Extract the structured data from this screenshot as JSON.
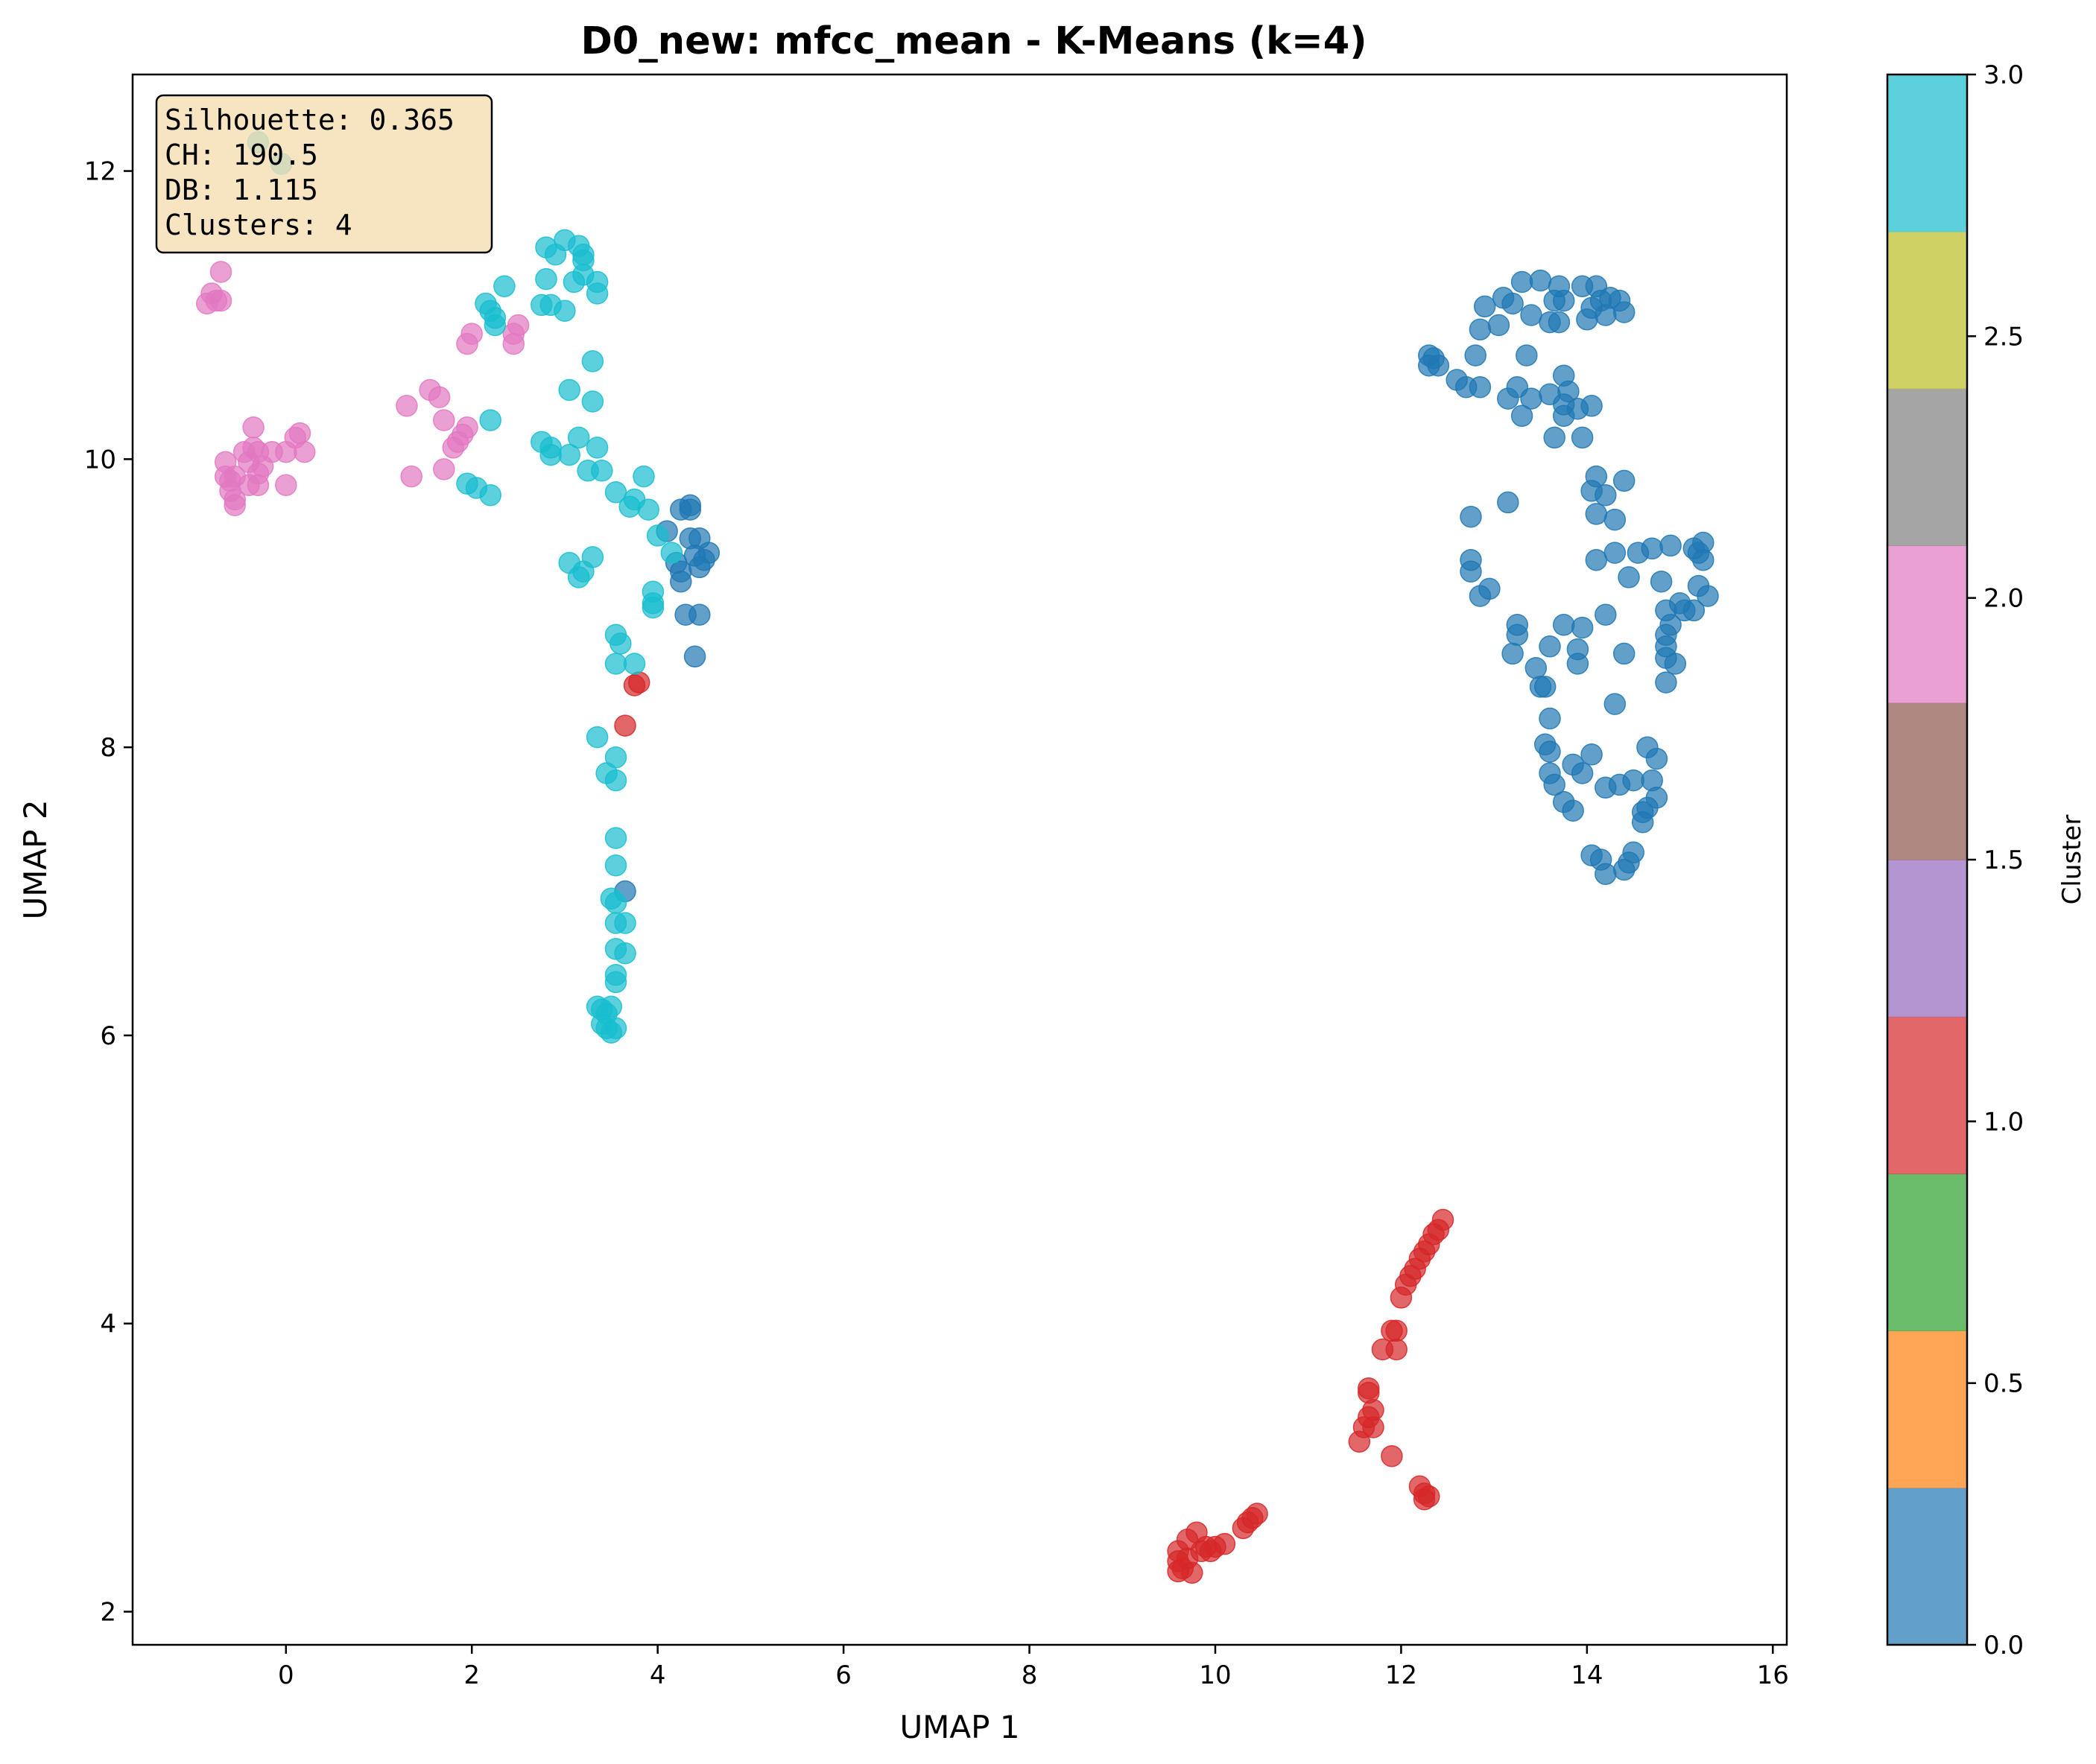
{
  "chart_data": {
    "type": "scatter",
    "title": "D0_new: mfcc_mean - K-Means (k=4)",
    "xlabel": "UMAP 1",
    "ylabel": "UMAP 2",
    "xlim": [
      -1.65,
      16.15
    ],
    "ylim": [
      1.77,
      12.67
    ],
    "xticks": [
      "0",
      "2",
      "4",
      "6",
      "8",
      "10",
      "12",
      "14",
      "16"
    ],
    "xtick_values": [
      0,
      2,
      4,
      6,
      8,
      10,
      12,
      14,
      16
    ],
    "yticks": [
      "2",
      "4",
      "6",
      "8",
      "10",
      "12"
    ],
    "ytick_values": [
      2,
      4,
      6,
      8,
      10,
      12
    ],
    "grid": false,
    "metrics": {
      "silhouette": "Silhouette: 0.365",
      "ch": "CH: 190.5",
      "db": "DB: 1.115",
      "clusters": "Clusters: 4"
    },
    "colorbar": {
      "label": "Cluster",
      "range": [
        0.0,
        3.0
      ],
      "ticks": [
        "0.0",
        "0.5",
        "1.0",
        "1.5",
        "2.0",
        "2.5",
        "3.0"
      ],
      "tick_values": [
        0.0,
        0.5,
        1.0,
        1.5,
        2.0,
        2.5,
        3.0
      ],
      "colors": [
        "#1f77b4",
        "#ff7f0e",
        "#2ca02c",
        "#d62728",
        "#9467bd",
        "#8c564b",
        "#e377c2",
        "#7f7f7f",
        "#bcbd22",
        "#17becf"
      ]
    },
    "series": [
      {
        "name": "Cluster 0",
        "cluster": 0,
        "color": "#1f77b4",
        "points": [
          [
            12.3,
            10.72
          ],
          [
            12.35,
            10.7
          ],
          [
            12.4,
            10.65
          ],
          [
            12.3,
            10.65
          ],
          [
            12.6,
            10.55
          ],
          [
            12.7,
            10.5
          ],
          [
            12.85,
            10.5
          ],
          [
            12.8,
            10.72
          ],
          [
            12.85,
            10.9
          ],
          [
            12.9,
            11.06
          ],
          [
            13.05,
            10.93
          ],
          [
            13.1,
            11.12
          ],
          [
            13.2,
            11.08
          ],
          [
            13.3,
            11.23
          ],
          [
            13.4,
            11.0
          ],
          [
            13.5,
            11.24
          ],
          [
            13.6,
            10.95
          ],
          [
            13.65,
            11.1
          ],
          [
            13.7,
            10.95
          ],
          [
            13.7,
            11.2
          ],
          [
            13.75,
            11.1
          ],
          [
            13.95,
            11.2
          ],
          [
            14.0,
            10.97
          ],
          [
            14.05,
            11.05
          ],
          [
            14.1,
            11.2
          ],
          [
            14.15,
            11.1
          ],
          [
            14.2,
            11.0
          ],
          [
            14.25,
            11.12
          ],
          [
            14.35,
            11.1
          ],
          [
            14.4,
            11.02
          ],
          [
            13.35,
            10.72
          ],
          [
            13.15,
            10.42
          ],
          [
            13.25,
            10.5
          ],
          [
            13.3,
            10.3
          ],
          [
            13.4,
            10.42
          ],
          [
            13.6,
            10.45
          ],
          [
            13.65,
            10.15
          ],
          [
            13.75,
            10.3
          ],
          [
            13.8,
            10.47
          ],
          [
            13.9,
            10.35
          ],
          [
            13.95,
            10.15
          ],
          [
            14.05,
            10.37
          ],
          [
            13.75,
            10.58
          ],
          [
            13.75,
            10.38
          ],
          [
            14.1,
            9.88
          ],
          [
            14.05,
            9.78
          ],
          [
            14.2,
            9.75
          ],
          [
            14.1,
            9.62
          ],
          [
            14.3,
            9.58
          ],
          [
            14.4,
            9.85
          ],
          [
            12.75,
            9.6
          ],
          [
            13.15,
            9.7
          ],
          [
            12.75,
            9.3
          ],
          [
            12.75,
            9.22
          ],
          [
            12.85,
            9.05
          ],
          [
            12.95,
            9.1
          ],
          [
            14.1,
            9.3
          ],
          [
            14.3,
            9.35
          ],
          [
            14.45,
            9.18
          ],
          [
            14.55,
            9.35
          ],
          [
            14.7,
            9.38
          ],
          [
            14.8,
            9.15
          ],
          [
            14.9,
            9.4
          ],
          [
            15.15,
            9.38
          ],
          [
            15.2,
            9.35
          ],
          [
            15.25,
            9.42
          ],
          [
            15.25,
            9.3
          ],
          [
            15.2,
            9.12
          ],
          [
            15.3,
            9.05
          ],
          [
            15.0,
            9.0
          ],
          [
            15.05,
            8.95
          ],
          [
            15.15,
            8.95
          ],
          [
            14.85,
            8.95
          ],
          [
            14.9,
            8.85
          ],
          [
            14.85,
            8.78
          ],
          [
            14.85,
            8.7
          ],
          [
            14.85,
            8.62
          ],
          [
            14.95,
            8.58
          ],
          [
            14.85,
            8.45
          ],
          [
            14.4,
            8.65
          ],
          [
            14.2,
            8.92
          ],
          [
            13.95,
            8.83
          ],
          [
            13.9,
            8.68
          ],
          [
            13.75,
            8.85
          ],
          [
            13.6,
            8.7
          ],
          [
            13.25,
            8.78
          ],
          [
            13.25,
            8.85
          ],
          [
            13.2,
            8.65
          ],
          [
            13.45,
            8.55
          ],
          [
            13.5,
            8.42
          ],
          [
            13.55,
            8.42
          ],
          [
            13.9,
            8.58
          ],
          [
            14.3,
            8.3
          ],
          [
            13.6,
            8.2
          ],
          [
            13.55,
            8.02
          ],
          [
            13.6,
            7.97
          ],
          [
            14.05,
            7.95
          ],
          [
            13.85,
            7.88
          ],
          [
            13.95,
            7.82
          ],
          [
            13.6,
            7.82
          ],
          [
            13.65,
            7.74
          ],
          [
            13.75,
            7.62
          ],
          [
            13.85,
            7.56
          ],
          [
            14.2,
            7.72
          ],
          [
            14.35,
            7.74
          ],
          [
            14.5,
            7.77
          ],
          [
            14.65,
            8.0
          ],
          [
            14.75,
            7.92
          ],
          [
            14.7,
            7.77
          ],
          [
            14.75,
            7.65
          ],
          [
            14.65,
            7.58
          ],
          [
            14.6,
            7.55
          ],
          [
            14.6,
            7.48
          ],
          [
            14.05,
            7.25
          ],
          [
            14.15,
            7.22
          ],
          [
            14.2,
            7.12
          ],
          [
            14.4,
            7.15
          ],
          [
            14.45,
            7.2
          ],
          [
            14.5,
            7.27
          ],
          [
            4.25,
            9.65
          ],
          [
            4.35,
            9.68
          ],
          [
            4.35,
            9.65
          ],
          [
            4.1,
            9.5
          ],
          [
            4.35,
            9.45
          ],
          [
            4.45,
            9.45
          ],
          [
            4.55,
            9.35
          ],
          [
            4.4,
            9.33
          ],
          [
            4.5,
            9.3
          ],
          [
            4.45,
            9.25
          ],
          [
            4.2,
            9.28
          ],
          [
            4.25,
            9.22
          ],
          [
            4.25,
            9.15
          ],
          [
            4.3,
            8.92
          ],
          [
            4.45,
            8.92
          ],
          [
            4.4,
            8.63
          ],
          [
            3.65,
            7.0
          ]
        ]
      },
      {
        "name": "Cluster 1",
        "cluster": 1,
        "color": "#d62728",
        "points": [
          [
            12.45,
            4.72
          ],
          [
            12.35,
            4.62
          ],
          [
            12.4,
            4.65
          ],
          [
            12.3,
            4.55
          ],
          [
            12.25,
            4.5
          ],
          [
            12.2,
            4.45
          ],
          [
            12.15,
            4.38
          ],
          [
            12.1,
            4.33
          ],
          [
            12.05,
            4.27
          ],
          [
            12.0,
            4.18
          ],
          [
            11.95,
            3.95
          ],
          [
            11.9,
            3.95
          ],
          [
            11.95,
            3.82
          ],
          [
            11.8,
            3.82
          ],
          [
            11.65,
            3.55
          ],
          [
            11.65,
            3.52
          ],
          [
            11.7,
            3.4
          ],
          [
            11.65,
            3.35
          ],
          [
            11.7,
            3.28
          ],
          [
            11.6,
            3.28
          ],
          [
            11.55,
            3.18
          ],
          [
            11.9,
            3.08
          ],
          [
            12.2,
            2.87
          ],
          [
            12.25,
            2.82
          ],
          [
            12.25,
            2.78
          ],
          [
            12.3,
            2.8
          ],
          [
            10.45,
            2.68
          ],
          [
            10.4,
            2.65
          ],
          [
            10.35,
            2.62
          ],
          [
            10.3,
            2.58
          ],
          [
            10.1,
            2.47
          ],
          [
            10.0,
            2.45
          ],
          [
            9.9,
            2.45
          ],
          [
            9.95,
            2.42
          ],
          [
            9.85,
            2.42
          ],
          [
            9.8,
            2.55
          ],
          [
            9.7,
            2.5
          ],
          [
            9.6,
            2.42
          ],
          [
            9.6,
            2.35
          ],
          [
            9.65,
            2.3
          ],
          [
            9.6,
            2.28
          ],
          [
            9.75,
            2.27
          ],
          [
            9.7,
            2.37
          ],
          [
            3.8,
            8.45
          ],
          [
            3.75,
            8.43
          ],
          [
            3.65,
            8.15
          ]
        ]
      },
      {
        "name": "Cluster 2",
        "cluster": 2,
        "color": "#e377c2",
        "points": [
          [
            -0.7,
            11.3
          ],
          [
            -0.8,
            11.15
          ],
          [
            -0.75,
            11.1
          ],
          [
            -0.85,
            11.08
          ],
          [
            -0.7,
            11.1
          ],
          [
            -0.35,
            10.22
          ],
          [
            -0.45,
            10.05
          ],
          [
            -0.35,
            10.08
          ],
          [
            -0.3,
            10.05
          ],
          [
            -0.15,
            10.05
          ],
          [
            0.0,
            10.05
          ],
          [
            0.1,
            10.15
          ],
          [
            0.15,
            10.18
          ],
          [
            0.2,
            10.05
          ],
          [
            -0.65,
            9.98
          ],
          [
            -0.4,
            9.98
          ],
          [
            -0.25,
            9.95
          ],
          [
            -0.3,
            9.9
          ],
          [
            -0.65,
            9.88
          ],
          [
            -0.55,
            9.88
          ],
          [
            -0.6,
            9.85
          ],
          [
            -0.6,
            9.78
          ],
          [
            -0.55,
            9.72
          ],
          [
            -0.55,
            9.68
          ],
          [
            -0.4,
            9.82
          ],
          [
            -0.3,
            9.82
          ],
          [
            0.0,
            9.82
          ],
          [
            1.3,
            10.37
          ],
          [
            1.55,
            10.48
          ],
          [
            1.65,
            10.43
          ],
          [
            1.7,
            10.27
          ],
          [
            1.85,
            10.12
          ],
          [
            1.95,
            10.22
          ],
          [
            1.9,
            10.17
          ],
          [
            1.8,
            10.08
          ],
          [
            1.7,
            9.93
          ],
          [
            1.35,
            9.88
          ],
          [
            2.0,
            10.87
          ],
          [
            1.95,
            10.8
          ],
          [
            2.45,
            10.8
          ],
          [
            2.45,
            10.87
          ],
          [
            2.5,
            10.93
          ]
        ]
      },
      {
        "name": "Cluster 3",
        "cluster": 3,
        "color": "#17becf",
        "points": [
          [
            -0.3,
            12.2
          ],
          [
            -0.05,
            12.05
          ],
          [
            3.0,
            11.52
          ],
          [
            2.8,
            11.47
          ],
          [
            3.15,
            11.48
          ],
          [
            3.2,
            11.42
          ],
          [
            3.2,
            11.38
          ],
          [
            2.9,
            11.42
          ],
          [
            3.2,
            11.28
          ],
          [
            3.1,
            11.23
          ],
          [
            3.35,
            11.23
          ],
          [
            2.8,
            11.25
          ],
          [
            3.35,
            11.15
          ],
          [
            2.35,
            11.2
          ],
          [
            2.15,
            11.08
          ],
          [
            2.2,
            11.03
          ],
          [
            2.25,
            10.98
          ],
          [
            2.25,
            10.93
          ],
          [
            2.85,
            11.07
          ],
          [
            2.75,
            11.07
          ],
          [
            3.0,
            11.03
          ],
          [
            3.3,
            10.68
          ],
          [
            3.05,
            10.48
          ],
          [
            3.3,
            10.4
          ],
          [
            2.2,
            10.27
          ],
          [
            2.75,
            10.12
          ],
          [
            2.85,
            10.08
          ],
          [
            3.05,
            10.03
          ],
          [
            3.15,
            10.15
          ],
          [
            3.35,
            10.08
          ],
          [
            2.85,
            10.03
          ],
          [
            3.25,
            9.92
          ],
          [
            3.4,
            9.92
          ],
          [
            1.95,
            9.83
          ],
          [
            2.05,
            9.8
          ],
          [
            2.2,
            9.75
          ],
          [
            3.55,
            9.77
          ],
          [
            3.7,
            9.67
          ],
          [
            3.75,
            9.72
          ],
          [
            3.85,
            9.88
          ],
          [
            3.9,
            9.65
          ],
          [
            4.0,
            9.47
          ],
          [
            4.15,
            9.35
          ],
          [
            3.3,
            9.32
          ],
          [
            3.05,
            9.28
          ],
          [
            3.2,
            9.22
          ],
          [
            3.15,
            9.18
          ],
          [
            3.95,
            9.08
          ],
          [
            3.95,
            9.0
          ],
          [
            3.95,
            8.97
          ],
          [
            3.55,
            8.78
          ],
          [
            3.6,
            8.72
          ],
          [
            3.55,
            8.58
          ],
          [
            3.75,
            8.58
          ],
          [
            3.35,
            8.07
          ],
          [
            3.55,
            7.93
          ],
          [
            3.45,
            7.82
          ],
          [
            3.55,
            7.77
          ],
          [
            3.55,
            7.37
          ],
          [
            3.55,
            7.18
          ],
          [
            3.5,
            6.95
          ],
          [
            3.55,
            6.92
          ],
          [
            3.55,
            6.78
          ],
          [
            3.65,
            6.78
          ],
          [
            3.55,
            6.6
          ],
          [
            3.65,
            6.57
          ],
          [
            3.55,
            6.42
          ],
          [
            3.55,
            6.37
          ],
          [
            3.35,
            6.2
          ],
          [
            3.4,
            6.18
          ],
          [
            3.45,
            6.15
          ],
          [
            3.5,
            6.2
          ],
          [
            3.4,
            6.08
          ],
          [
            3.45,
            6.05
          ],
          [
            3.5,
            6.02
          ],
          [
            3.55,
            6.05
          ]
        ]
      }
    ]
  }
}
